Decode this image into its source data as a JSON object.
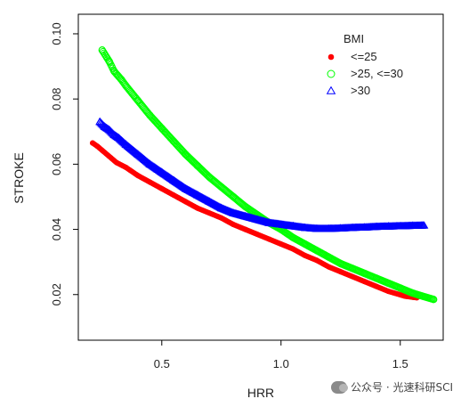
{
  "chart_data": {
    "type": "scatter",
    "title": "",
    "xlabel": "HRR",
    "ylabel": "STROKE",
    "xlim": [
      0.15,
      1.68
    ],
    "ylim": [
      0.006,
      0.106
    ],
    "xticks": [
      0.5,
      1.0,
      1.5
    ],
    "xtick_labels": [
      "0.5",
      "1.0",
      "1.5"
    ],
    "yticks": [
      0.02,
      0.04,
      0.06,
      0.08,
      0.1
    ],
    "ytick_labels": [
      "0.02",
      "0.04",
      "0.06",
      "0.08",
      "0.10"
    ],
    "grid": false,
    "legend": {
      "title": "BMI",
      "position": "top-right"
    },
    "series": [
      {
        "name": "<=25",
        "marker": "filled-circle",
        "color": "#ff0000",
        "x": [
          0.21,
          0.23,
          0.31,
          0.35,
          0.4,
          0.45,
          0.5,
          0.55,
          0.6,
          0.65,
          0.7,
          0.75,
          0.8,
          0.85,
          0.9,
          0.95,
          1.0,
          1.05,
          1.1,
          1.15,
          1.2,
          1.25,
          1.3,
          1.35,
          1.4,
          1.45,
          1.52,
          1.57
        ],
        "y": [
          0.0665,
          0.0655,
          0.0605,
          0.059,
          0.0565,
          0.0545,
          0.0525,
          0.0505,
          0.0485,
          0.0465,
          0.045,
          0.0435,
          0.0415,
          0.04,
          0.0385,
          0.037,
          0.0355,
          0.034,
          0.032,
          0.0305,
          0.0285,
          0.027,
          0.0255,
          0.024,
          0.0225,
          0.021,
          0.0195,
          0.019
        ]
      },
      {
        "name": ">25, <=30",
        "marker": "open-circle",
        "color": "#00ff00",
        "x": [
          0.25,
          0.28,
          0.3,
          0.33,
          0.35,
          0.4,
          0.45,
          0.5,
          0.55,
          0.6,
          0.65,
          0.7,
          0.75,
          0.8,
          0.85,
          0.9,
          0.95,
          1.0,
          1.05,
          1.1,
          1.15,
          1.2,
          1.25,
          1.3,
          1.35,
          1.4,
          1.45,
          1.5,
          1.55,
          1.58,
          1.64
        ],
        "y": [
          0.095,
          0.0915,
          0.0885,
          0.086,
          0.084,
          0.0795,
          0.075,
          0.071,
          0.067,
          0.063,
          0.0595,
          0.056,
          0.053,
          0.05,
          0.047,
          0.0445,
          0.042,
          0.04,
          0.0375,
          0.0355,
          0.0335,
          0.0315,
          0.0295,
          0.028,
          0.0265,
          0.025,
          0.0235,
          0.022,
          0.0205,
          0.0198,
          0.0185
        ]
      },
      {
        "name": ">30",
        "marker": "open-triangle",
        "color": "#0000ff",
        "x": [
          0.24,
          0.26,
          0.28,
          0.3,
          0.32,
          0.35,
          0.4,
          0.45,
          0.5,
          0.55,
          0.6,
          0.65,
          0.7,
          0.75,
          0.8,
          0.85,
          0.9,
          0.95,
          1.0,
          1.05,
          1.1,
          1.15,
          1.2,
          1.25,
          1.3,
          1.35,
          1.4,
          1.45,
          1.5,
          1.55,
          1.6
        ],
        "y": [
          0.073,
          0.0715,
          0.0705,
          0.069,
          0.068,
          0.066,
          0.063,
          0.06,
          0.0575,
          0.055,
          0.0525,
          0.0505,
          0.0485,
          0.0465,
          0.045,
          0.044,
          0.043,
          0.042,
          0.0415,
          0.041,
          0.0405,
          0.0402,
          0.0402,
          0.0403,
          0.0405,
          0.0406,
          0.0408,
          0.0409,
          0.041,
          0.0411,
          0.0412
        ]
      }
    ]
  },
  "watermark": {
    "text": "公众号 · 光速科研SCI",
    "icon": "wechat-icon"
  }
}
